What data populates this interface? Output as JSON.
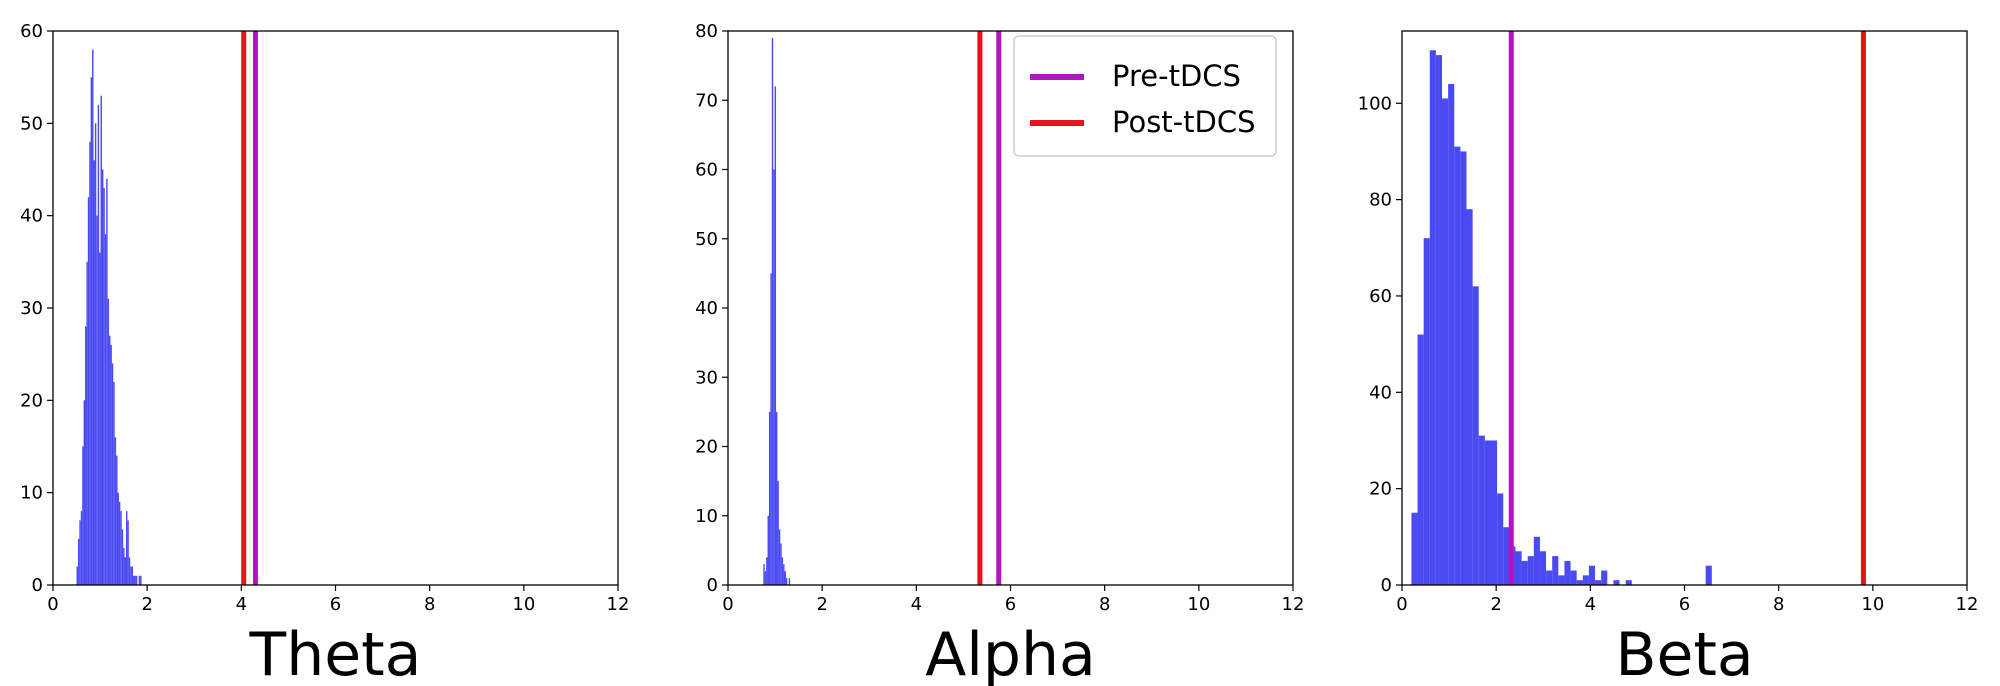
{
  "colors": {
    "histogram": "#4a4af2",
    "pre": "#b513c2",
    "post": "#e8121c"
  },
  "legend": [
    {
      "label": "Pre-tDCS",
      "color": "#b513c2"
    },
    {
      "label": "Post-tDCS",
      "color": "#e8121c"
    }
  ],
  "chart_data": [
    {
      "type": "histogram",
      "title": "Theta",
      "xlim": [
        0,
        12
      ],
      "ylim": [
        0,
        60
      ],
      "xticks": [
        0,
        2,
        4,
        6,
        8,
        10,
        12
      ],
      "yticks": [
        0,
        10,
        20,
        30,
        40,
        50,
        60
      ],
      "bin_width": 0.03,
      "bins": [
        [
          0.5,
          2
        ],
        [
          0.53,
          5
        ],
        [
          0.56,
          7
        ],
        [
          0.59,
          8
        ],
        [
          0.62,
          15
        ],
        [
          0.65,
          20
        ],
        [
          0.68,
          28
        ],
        [
          0.71,
          35
        ],
        [
          0.74,
          42
        ],
        [
          0.77,
          48
        ],
        [
          0.8,
          55
        ],
        [
          0.83,
          58
        ],
        [
          0.86,
          46
        ],
        [
          0.89,
          50
        ],
        [
          0.92,
          40
        ],
        [
          0.95,
          52
        ],
        [
          0.98,
          36
        ],
        [
          1.01,
          53
        ],
        [
          1.04,
          45
        ],
        [
          1.07,
          43
        ],
        [
          1.1,
          38
        ],
        [
          1.13,
          44
        ],
        [
          1.16,
          31
        ],
        [
          1.19,
          27
        ],
        [
          1.22,
          26
        ],
        [
          1.25,
          24
        ],
        [
          1.28,
          22
        ],
        [
          1.31,
          16
        ],
        [
          1.34,
          14
        ],
        [
          1.37,
          10
        ],
        [
          1.4,
          9
        ],
        [
          1.43,
          8
        ],
        [
          1.46,
          6
        ],
        [
          1.49,
          4
        ],
        [
          1.52,
          3
        ],
        [
          1.55,
          8
        ],
        [
          1.58,
          7
        ],
        [
          1.61,
          3
        ],
        [
          1.64,
          2
        ],
        [
          1.67,
          2
        ],
        [
          1.7,
          1
        ],
        [
          1.73,
          1
        ],
        [
          1.76,
          1
        ],
        [
          1.79,
          0
        ],
        [
          1.82,
          1
        ],
        [
          1.85,
          1
        ]
      ],
      "vlines": [
        {
          "series": "Post-tDCS",
          "x": 4.05
        },
        {
          "series": "Pre-tDCS",
          "x": 4.3
        }
      ]
    },
    {
      "type": "histogram",
      "title": "Alpha",
      "xlim": [
        0,
        12
      ],
      "ylim": [
        0,
        80
      ],
      "xticks": [
        0,
        2,
        4,
        6,
        8,
        10,
        12
      ],
      "yticks": [
        0,
        10,
        20,
        30,
        40,
        50,
        60,
        70,
        80
      ],
      "bin_width": 0.03,
      "bins": [
        [
          0.75,
          3
        ],
        [
          0.78,
          2
        ],
        [
          0.81,
          4
        ],
        [
          0.84,
          10
        ],
        [
          0.87,
          25
        ],
        [
          0.9,
          45
        ],
        [
          0.93,
          79
        ],
        [
          0.96,
          60
        ],
        [
          0.99,
          72
        ],
        [
          1.02,
          25
        ],
        [
          1.05,
          15
        ],
        [
          1.08,
          8
        ],
        [
          1.11,
          6
        ],
        [
          1.14,
          4
        ],
        [
          1.17,
          3
        ],
        [
          1.2,
          2
        ],
        [
          1.23,
          1
        ],
        [
          1.26,
          0
        ],
        [
          1.29,
          1
        ]
      ],
      "vlines": [
        {
          "series": "Post-tDCS",
          "x": 5.35
        },
        {
          "series": "Pre-tDCS",
          "x": 5.75
        }
      ]
    },
    {
      "type": "histogram",
      "title": "Beta",
      "xlim": [
        0,
        12
      ],
      "ylim": [
        0,
        115
      ],
      "xticks": [
        0,
        2,
        4,
        6,
        8,
        10,
        12
      ],
      "yticks": [
        0,
        20,
        40,
        60,
        80,
        100
      ],
      "bin_width": 0.13,
      "bins": [
        [
          0.2,
          15
        ],
        [
          0.33,
          52
        ],
        [
          0.46,
          72
        ],
        [
          0.59,
          111
        ],
        [
          0.72,
          110
        ],
        [
          0.85,
          101
        ],
        [
          0.98,
          104
        ],
        [
          1.11,
          91
        ],
        [
          1.24,
          90
        ],
        [
          1.37,
          78
        ],
        [
          1.5,
          62
        ],
        [
          1.63,
          31
        ],
        [
          1.76,
          30
        ],
        [
          1.89,
          30
        ],
        [
          2.02,
          19
        ],
        [
          2.15,
          12
        ],
        [
          2.28,
          8
        ],
        [
          2.41,
          7
        ],
        [
          2.54,
          5
        ],
        [
          2.67,
          6
        ],
        [
          2.8,
          10
        ],
        [
          2.93,
          7
        ],
        [
          3.06,
          3
        ],
        [
          3.19,
          6
        ],
        [
          3.32,
          2
        ],
        [
          3.45,
          5
        ],
        [
          3.58,
          3
        ],
        [
          3.71,
          1
        ],
        [
          3.84,
          2
        ],
        [
          3.97,
          4
        ],
        [
          4.1,
          1
        ],
        [
          4.23,
          3
        ],
        [
          4.36,
          0
        ],
        [
          4.49,
          1
        ],
        [
          4.62,
          0
        ],
        [
          4.75,
          1
        ],
        [
          6.45,
          4
        ]
      ],
      "vlines": [
        {
          "series": "Pre-tDCS",
          "x": 2.32
        },
        {
          "series": "Post-tDCS",
          "x": 9.8
        }
      ]
    }
  ]
}
